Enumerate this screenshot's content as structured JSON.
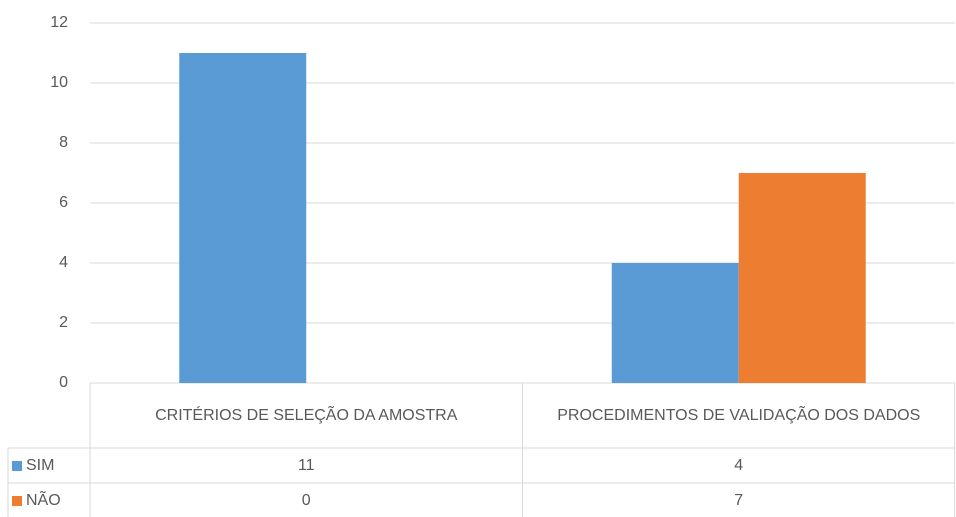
{
  "chart_data": {
    "type": "bar",
    "categories": [
      "CRITÉRIOS DE SELEÇÃO DA AMOSTRA",
      "PROCEDIMENTOS DE VALIDAÇÃO DOS DADOS"
    ],
    "series": [
      {
        "name": "SIM",
        "color": "#5b9bd5",
        "values": [
          11,
          4
        ]
      },
      {
        "name": "NÃO",
        "color": "#ed7d31",
        "values": [
          0,
          7
        ]
      }
    ],
    "ylim": [
      0,
      12
    ],
    "yticks": [
      0,
      2,
      4,
      6,
      8,
      10,
      12
    ],
    "grid": true,
    "data_table": true
  }
}
